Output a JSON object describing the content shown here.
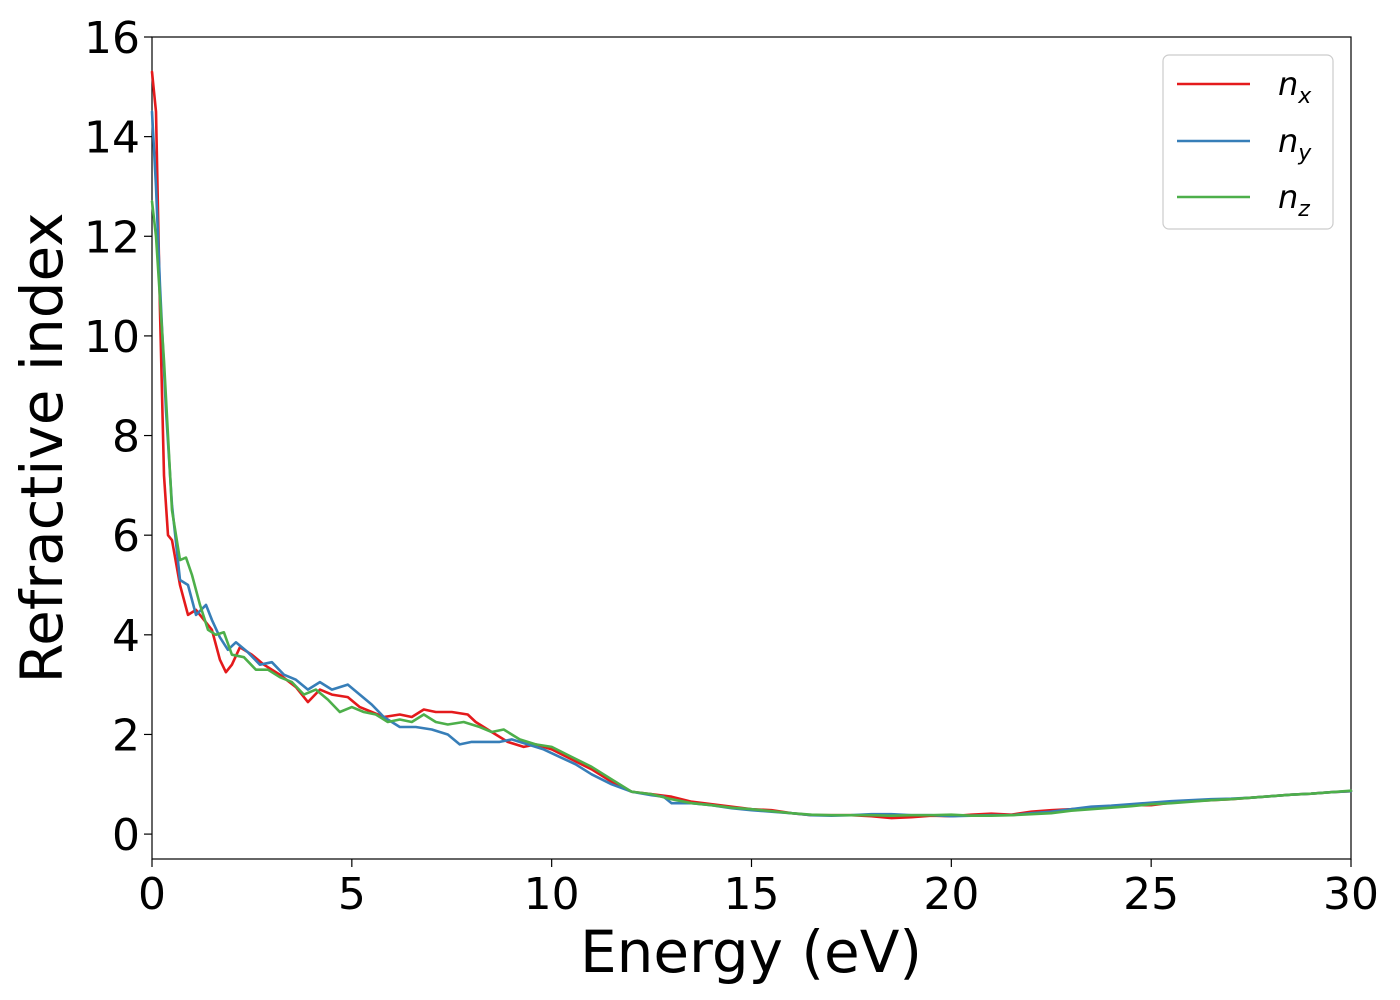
{
  "chart_data": {
    "type": "line",
    "xlabel": "Energy (eV)",
    "ylabel": "Refractive index",
    "xlim": [
      0,
      30
    ],
    "ylim": [
      -0.5,
      16
    ],
    "xticks": [
      "0",
      "5",
      "10",
      "15",
      "20",
      "25",
      "30"
    ],
    "yticks": [
      "0",
      "2",
      "4",
      "6",
      "8",
      "10",
      "12",
      "14",
      "16"
    ],
    "grid": false,
    "legend_position": "top-right",
    "series": [
      {
        "name": "n_x",
        "legend_base": "n",
        "legend_sub": "x",
        "color": "#e41a1c",
        "points": [
          [
            0,
            15.3
          ],
          [
            0.1,
            14.5
          ],
          [
            0.2,
            10.5
          ],
          [
            0.3,
            7.2
          ],
          [
            0.4,
            6.0
          ],
          [
            0.5,
            5.9
          ],
          [
            0.7,
            5.0
          ],
          [
            0.9,
            4.4
          ],
          [
            1.1,
            4.5
          ],
          [
            1.3,
            4.3
          ],
          [
            1.5,
            4.1
          ],
          [
            1.7,
            3.5
          ],
          [
            1.85,
            3.25
          ],
          [
            2.0,
            3.4
          ],
          [
            2.2,
            3.75
          ],
          [
            2.5,
            3.6
          ],
          [
            2.8,
            3.4
          ],
          [
            3.2,
            3.2
          ],
          [
            3.6,
            2.95
          ],
          [
            3.9,
            2.65
          ],
          [
            4.2,
            2.9
          ],
          [
            4.5,
            2.8
          ],
          [
            4.9,
            2.75
          ],
          [
            5.2,
            2.55
          ],
          [
            5.5,
            2.45
          ],
          [
            5.8,
            2.35
          ],
          [
            6.2,
            2.4
          ],
          [
            6.5,
            2.35
          ],
          [
            6.8,
            2.5
          ],
          [
            7.1,
            2.45
          ],
          [
            7.5,
            2.45
          ],
          [
            7.9,
            2.4
          ],
          [
            8.1,
            2.25
          ],
          [
            8.5,
            2.05
          ],
          [
            8.9,
            1.85
          ],
          [
            9.3,
            1.75
          ],
          [
            9.6,
            1.8
          ],
          [
            10.0,
            1.7
          ],
          [
            10.5,
            1.5
          ],
          [
            11.0,
            1.3
          ],
          [
            11.5,
            1.05
          ],
          [
            12.0,
            0.85
          ],
          [
            12.5,
            0.8
          ],
          [
            13.0,
            0.75
          ],
          [
            13.5,
            0.65
          ],
          [
            14.0,
            0.6
          ],
          [
            14.5,
            0.55
          ],
          [
            15.0,
            0.5
          ],
          [
            15.5,
            0.48
          ],
          [
            16.0,
            0.42
          ],
          [
            16.5,
            0.38
          ],
          [
            17.0,
            0.38
          ],
          [
            17.5,
            0.38
          ],
          [
            18.0,
            0.36
          ],
          [
            18.5,
            0.32
          ],
          [
            19.0,
            0.34
          ],
          [
            19.5,
            0.37
          ],
          [
            20.0,
            0.36
          ],
          [
            20.5,
            0.39
          ],
          [
            21.0,
            0.41
          ],
          [
            21.5,
            0.39
          ],
          [
            22.0,
            0.45
          ],
          [
            22.5,
            0.48
          ],
          [
            23.0,
            0.5
          ],
          [
            23.5,
            0.53
          ],
          [
            24.0,
            0.56
          ],
          [
            24.5,
            0.58
          ],
          [
            25.0,
            0.58
          ],
          [
            25.5,
            0.63
          ],
          [
            26.0,
            0.66
          ],
          [
            26.5,
            0.68
          ],
          [
            27.0,
            0.7
          ],
          [
            27.5,
            0.73
          ],
          [
            28.0,
            0.76
          ],
          [
            28.5,
            0.79
          ],
          [
            29.0,
            0.81
          ],
          [
            29.5,
            0.84
          ],
          [
            30.0,
            0.86
          ]
        ]
      },
      {
        "name": "n_y",
        "legend_base": "n",
        "legend_sub": "y",
        "color": "#377eb8",
        "points": [
          [
            0,
            14.5
          ],
          [
            0.1,
            13.0
          ],
          [
            0.2,
            11.0
          ],
          [
            0.35,
            8.5
          ],
          [
            0.5,
            6.6
          ],
          [
            0.7,
            5.1
          ],
          [
            0.9,
            5.0
          ],
          [
            1.1,
            4.4
          ],
          [
            1.35,
            4.6
          ],
          [
            1.5,
            4.3
          ],
          [
            1.7,
            3.95
          ],
          [
            1.9,
            3.7
          ],
          [
            2.1,
            3.85
          ],
          [
            2.4,
            3.65
          ],
          [
            2.7,
            3.4
          ],
          [
            3.0,
            3.45
          ],
          [
            3.3,
            3.2
          ],
          [
            3.6,
            3.1
          ],
          [
            3.9,
            2.9
          ],
          [
            4.2,
            3.05
          ],
          [
            4.5,
            2.9
          ],
          [
            4.9,
            3.0
          ],
          [
            5.2,
            2.8
          ],
          [
            5.5,
            2.6
          ],
          [
            5.8,
            2.35
          ],
          [
            6.2,
            2.15
          ],
          [
            6.6,
            2.15
          ],
          [
            7.0,
            2.1
          ],
          [
            7.4,
            2.0
          ],
          [
            7.7,
            1.8
          ],
          [
            8.0,
            1.85
          ],
          [
            8.4,
            1.85
          ],
          [
            8.7,
            1.85
          ],
          [
            9.0,
            1.9
          ],
          [
            9.4,
            1.8
          ],
          [
            9.8,
            1.7
          ],
          [
            10.2,
            1.55
          ],
          [
            10.6,
            1.4
          ],
          [
            11.0,
            1.2
          ],
          [
            11.5,
            1.0
          ],
          [
            12.0,
            0.85
          ],
          [
            12.5,
            0.78
          ],
          [
            12.8,
            0.75
          ],
          [
            13.0,
            0.62
          ],
          [
            13.5,
            0.62
          ],
          [
            14.0,
            0.58
          ],
          [
            14.5,
            0.52
          ],
          [
            15.0,
            0.48
          ],
          [
            15.5,
            0.45
          ],
          [
            16.0,
            0.42
          ],
          [
            16.5,
            0.38
          ],
          [
            17.0,
            0.37
          ],
          [
            17.5,
            0.38
          ],
          [
            18.0,
            0.4
          ],
          [
            18.5,
            0.4
          ],
          [
            19.0,
            0.38
          ],
          [
            19.5,
            0.38
          ],
          [
            20.0,
            0.36
          ],
          [
            20.5,
            0.37
          ],
          [
            21.0,
            0.38
          ],
          [
            21.5,
            0.38
          ],
          [
            22.0,
            0.42
          ],
          [
            22.5,
            0.45
          ],
          [
            23.0,
            0.5
          ],
          [
            23.5,
            0.55
          ],
          [
            24.0,
            0.57
          ],
          [
            24.5,
            0.6
          ],
          [
            25.0,
            0.63
          ],
          [
            25.5,
            0.66
          ],
          [
            26.0,
            0.68
          ],
          [
            26.5,
            0.7
          ],
          [
            27.0,
            0.71
          ],
          [
            27.5,
            0.73
          ],
          [
            28.0,
            0.76
          ],
          [
            28.5,
            0.79
          ],
          [
            29.0,
            0.81
          ],
          [
            29.5,
            0.84
          ],
          [
            30.0,
            0.86
          ]
        ]
      },
      {
        "name": "n_z",
        "legend_base": "n",
        "legend_sub": "z",
        "color": "#4daf4a",
        "points": [
          [
            0,
            12.7
          ],
          [
            0.1,
            12.0
          ],
          [
            0.3,
            9.5
          ],
          [
            0.5,
            6.5
          ],
          [
            0.7,
            5.5
          ],
          [
            0.85,
            5.55
          ],
          [
            1.0,
            5.2
          ],
          [
            1.2,
            4.6
          ],
          [
            1.4,
            4.1
          ],
          [
            1.6,
            4.0
          ],
          [
            1.8,
            4.05
          ],
          [
            2.0,
            3.6
          ],
          [
            2.3,
            3.55
          ],
          [
            2.6,
            3.3
          ],
          [
            2.9,
            3.3
          ],
          [
            3.2,
            3.15
          ],
          [
            3.5,
            3.05
          ],
          [
            3.8,
            2.8
          ],
          [
            4.1,
            2.9
          ],
          [
            4.4,
            2.7
          ],
          [
            4.7,
            2.45
          ],
          [
            5.0,
            2.55
          ],
          [
            5.3,
            2.45
          ],
          [
            5.6,
            2.4
          ],
          [
            5.9,
            2.25
          ],
          [
            6.2,
            2.3
          ],
          [
            6.5,
            2.25
          ],
          [
            6.8,
            2.4
          ],
          [
            7.1,
            2.25
          ],
          [
            7.4,
            2.2
          ],
          [
            7.8,
            2.25
          ],
          [
            8.2,
            2.15
          ],
          [
            8.5,
            2.05
          ],
          [
            8.8,
            2.1
          ],
          [
            9.2,
            1.9
          ],
          [
            9.6,
            1.8
          ],
          [
            10.0,
            1.75
          ],
          [
            10.5,
            1.55
          ],
          [
            11.0,
            1.35
          ],
          [
            11.5,
            1.1
          ],
          [
            12.0,
            0.85
          ],
          [
            12.5,
            0.8
          ],
          [
            13.0,
            0.7
          ],
          [
            13.5,
            0.62
          ],
          [
            14.0,
            0.58
          ],
          [
            14.5,
            0.53
          ],
          [
            15.0,
            0.5
          ],
          [
            15.5,
            0.46
          ],
          [
            16.0,
            0.42
          ],
          [
            16.5,
            0.39
          ],
          [
            17.0,
            0.38
          ],
          [
            17.5,
            0.38
          ],
          [
            18.0,
            0.38
          ],
          [
            18.5,
            0.37
          ],
          [
            19.0,
            0.38
          ],
          [
            19.5,
            0.38
          ],
          [
            20.0,
            0.39
          ],
          [
            20.5,
            0.37
          ],
          [
            21.0,
            0.37
          ],
          [
            21.5,
            0.38
          ],
          [
            22.0,
            0.4
          ],
          [
            22.5,
            0.42
          ],
          [
            23.0,
            0.47
          ],
          [
            23.5,
            0.5
          ],
          [
            24.0,
            0.53
          ],
          [
            24.5,
            0.56
          ],
          [
            25.0,
            0.6
          ],
          [
            25.5,
            0.62
          ],
          [
            26.0,
            0.65
          ],
          [
            26.5,
            0.68
          ],
          [
            27.0,
            0.7
          ],
          [
            27.5,
            0.73
          ],
          [
            28.0,
            0.76
          ],
          [
            28.5,
            0.79
          ],
          [
            29.0,
            0.81
          ],
          [
            29.5,
            0.84
          ],
          [
            30.0,
            0.87
          ]
        ]
      }
    ]
  }
}
